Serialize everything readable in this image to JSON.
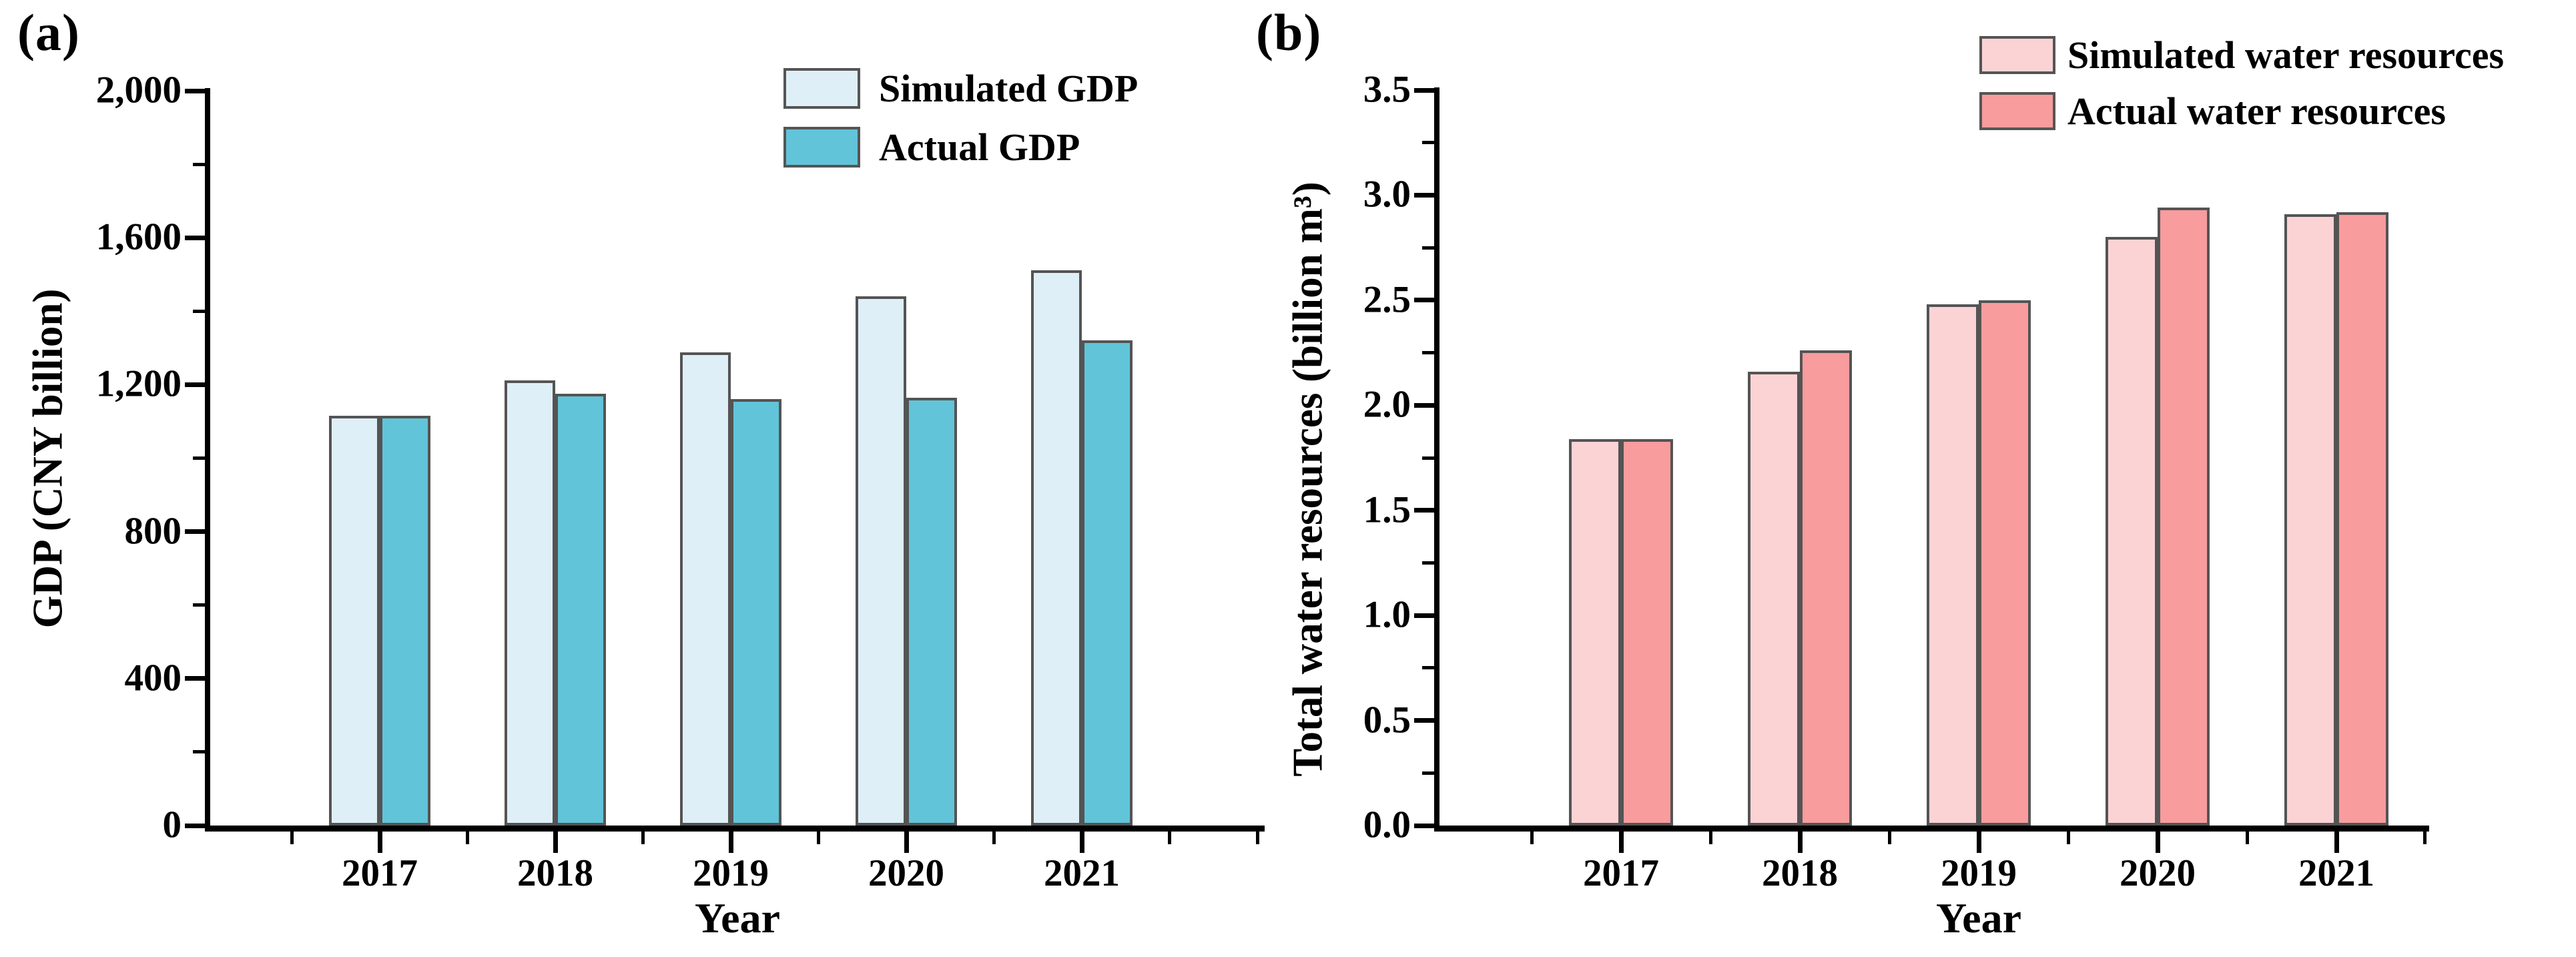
{
  "figure": {
    "background": "#ffffff",
    "text_color": "#000000",
    "panels": [
      {
        "label": "(a)"
      },
      {
        "label": "(b)"
      }
    ]
  },
  "colors": {
    "axis": "#000000",
    "bar_border": "#545454",
    "legend_swatch_border": "#555555",
    "simulated_gdp": "#dfeff7",
    "actual_gdp": "#61c4d9",
    "simulated_water": "#fbd3d5",
    "actual_water": "#f89c9e"
  },
  "chart_data": [
    {
      "type": "bar",
      "panel_label": "(a)",
      "title": "",
      "categories": [
        "2017",
        "2018",
        "2019",
        "2020",
        "2021"
      ],
      "series": [
        {
          "name": "Simulated GDP",
          "color": "#dfeff7",
          "values": [
            1115,
            1212,
            1288,
            1440,
            1512
          ]
        },
        {
          "name": "Actual GDP",
          "color": "#61c4d9",
          "values": [
            1115,
            1175,
            1160,
            1165,
            1320
          ]
        }
      ],
      "xlabel": "Year",
      "ylabel": "GDP (CNY billion)",
      "ylim": [
        0,
        2000
      ],
      "ytick_step": 400,
      "yminor_step": 200,
      "ytick_labels": [
        "0",
        "400",
        "800",
        "1,200",
        "1,600",
        "2,000"
      ],
      "legend_position": "top-right-inside",
      "grid": false
    },
    {
      "type": "bar",
      "panel_label": "(b)",
      "title": "",
      "categories": [
        "2017",
        "2018",
        "2019",
        "2020",
        "2021"
      ],
      "series": [
        {
          "name": "Simulated water resources",
          "color": "#fbd3d5",
          "values": [
            1.84,
            2.16,
            2.48,
            2.8,
            2.91
          ]
        },
        {
          "name": "Actual water resources",
          "color": "#f89c9e",
          "values": [
            1.84,
            2.26,
            2.5,
            2.94,
            2.92
          ]
        }
      ],
      "xlabel": "Year",
      "ylabel": "Total water resources (billion m³)",
      "ylim": [
        0,
        3.5
      ],
      "ytick_step": 0.5,
      "yminor_step": 0.25,
      "ytick_labels": [
        "0.0",
        "0.5",
        "1.0",
        "1.5",
        "2.0",
        "2.5",
        "3.0",
        "3.5"
      ],
      "legend_position": "top-right-inside",
      "grid": false
    }
  ]
}
